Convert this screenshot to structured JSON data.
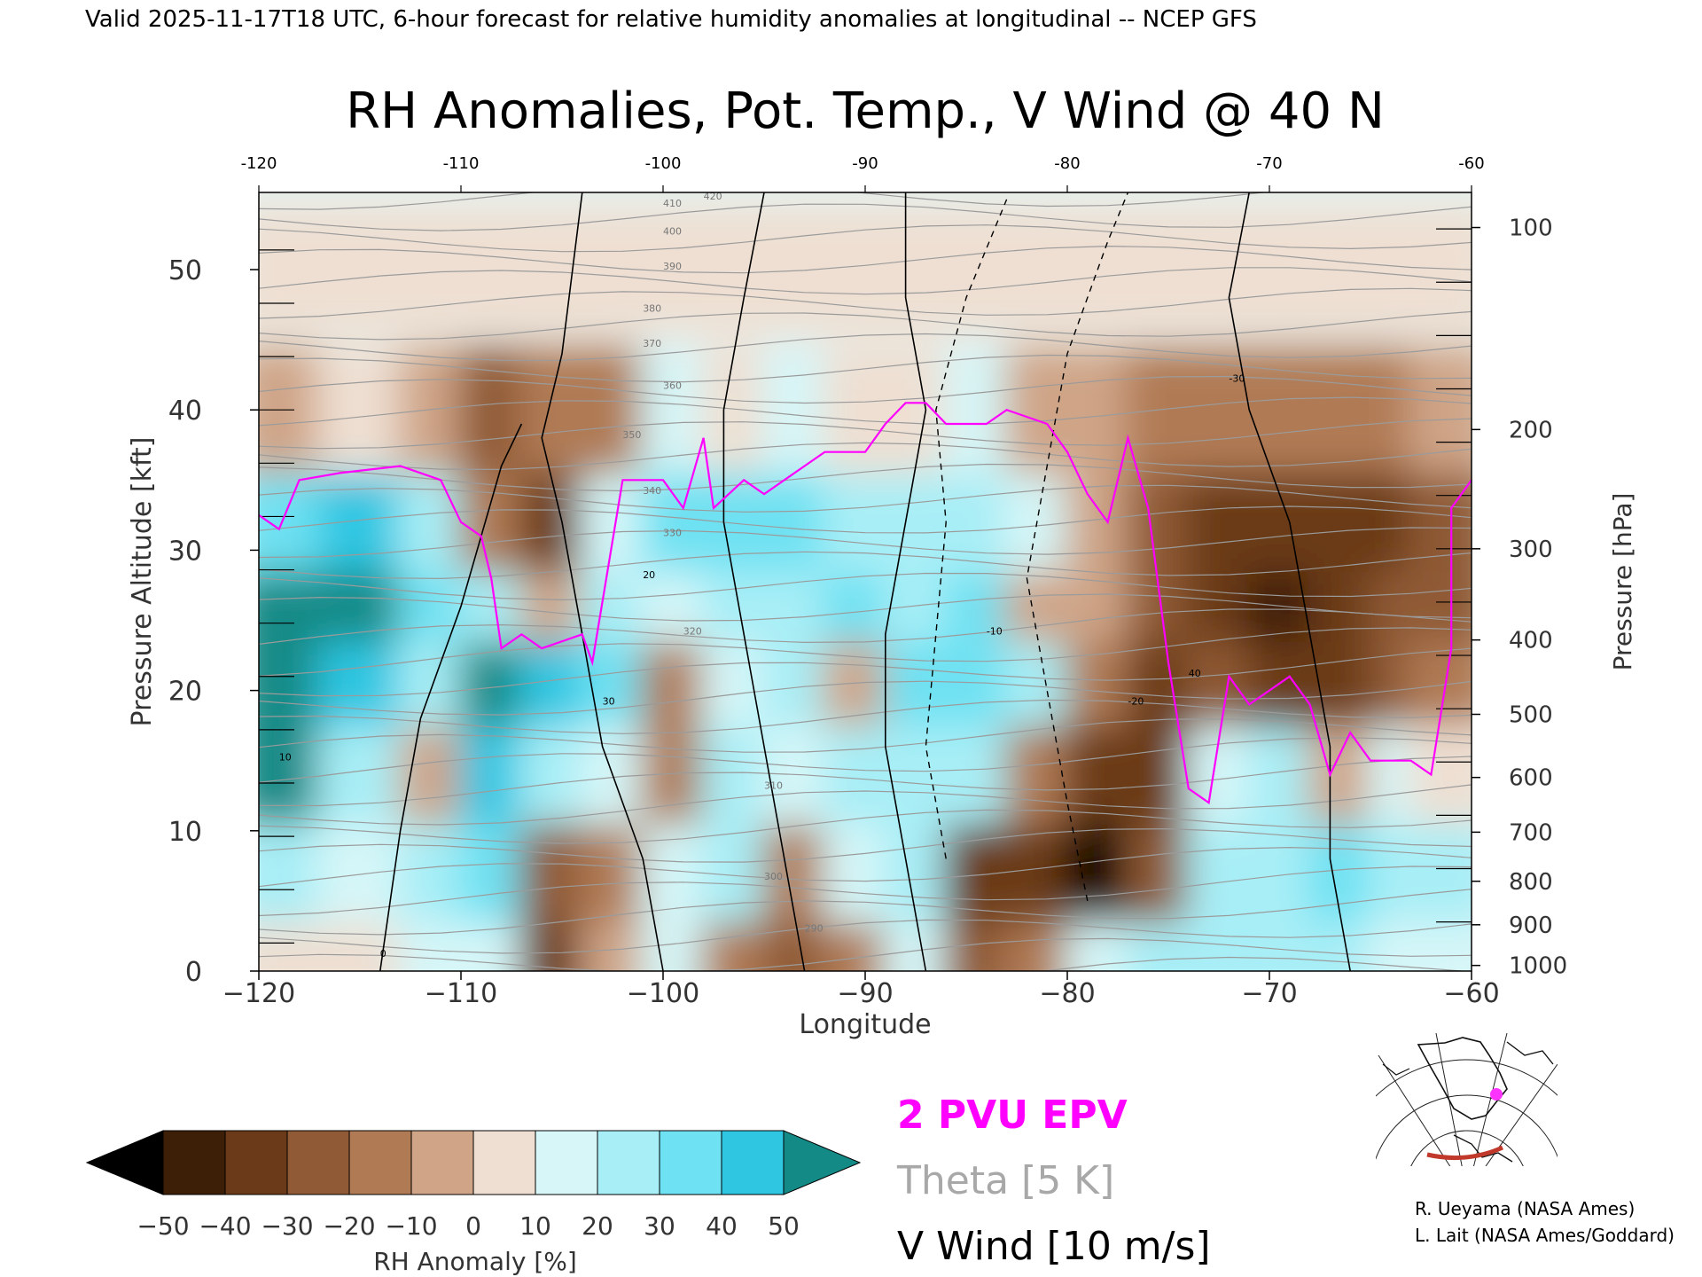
{
  "chart_data": {
    "type": "heatmap",
    "header": "Valid 2025-11-17T18 UTC, 6-hour forecast for relative humidity anomalies at longitudinal -- NCEP GFS",
    "title": "RH Anomalies, Pot. Temp., V Wind @ 40 N",
    "xlabel": "Longitude",
    "ylabel": "Pressure Altitude [kft]",
    "y2label": "Pressure [hPa]",
    "xlim": [
      -120,
      -60
    ],
    "ylim": [
      0,
      55.5
    ],
    "x_ticks": [
      -120,
      -110,
      -100,
      -90,
      -80,
      -70,
      -60
    ],
    "x_tick_labels": [
      "−120",
      "−110",
      "−100",
      "−90",
      "−80",
      "−70",
      "−60"
    ],
    "x_top_tick_labels": [
      "-120",
      "-110",
      "-100",
      "-90",
      "-80",
      "-70",
      "-60"
    ],
    "y_ticks": [
      0,
      10,
      20,
      30,
      40,
      50
    ],
    "y_tick_labels": [
      "0",
      "10",
      "20",
      "30",
      "40",
      "50"
    ],
    "pressure_ticks": [
      {
        "label": "100",
        "kft": 53.0
      },
      {
        "label": "200",
        "kft": 38.6
      },
      {
        "label": "300",
        "kft": 30.1
      },
      {
        "label": "400",
        "kft": 23.6
      },
      {
        "label": "500",
        "kft": 18.3
      },
      {
        "label": "600",
        "kft": 13.8
      },
      {
        "label": "700",
        "kft": 9.9
      },
      {
        "label": "800",
        "kft": 6.4
      },
      {
        "label": "900",
        "kft": 3.3
      },
      {
        "label": "1000",
        "kft": 0.4
      }
    ],
    "colorbar": {
      "label": "RH Anomaly [%]",
      "tick_labels": [
        "−50",
        "−40",
        "−30",
        "−20",
        "−10",
        "0",
        "10",
        "20",
        "30",
        "40",
        "50"
      ],
      "levels": [
        -50,
        -40,
        -30,
        -20,
        -10,
        0,
        10,
        20,
        30,
        40,
        50
      ],
      "bin_colors": [
        "#3d1f08",
        "#6b3a18",
        "#8f5a35",
        "#b07a55",
        "#cfa487",
        "#eedfd2",
        "#d6f6f8",
        "#a8eef6",
        "#6ee1f2",
        "#2fc6e2",
        "#0a8fae"
      ],
      "under_color": "#000000",
      "over_color": "#148a86"
    },
    "legend": [
      {
        "text": "2 PVU EPV",
        "color": "#ff00ff"
      },
      {
        "text": "Theta [5 K]",
        "color": "#a8a8a8"
      },
      {
        "text": "V Wind [10 m/s]",
        "color": "#000000"
      }
    ],
    "rh_anomaly_field": [
      {
        "x": -119,
        "y": 2,
        "v": 5
      },
      {
        "x": -119,
        "y": 8,
        "v": 25
      },
      {
        "x": -119,
        "y": 15,
        "v": 55
      },
      {
        "x": -119,
        "y": 22,
        "v": 55
      },
      {
        "x": -119,
        "y": 28,
        "v": 55
      },
      {
        "x": -119,
        "y": 33,
        "v": 35
      },
      {
        "x": -119,
        "y": 40,
        "v": -5
      },
      {
        "x": -119,
        "y": 50,
        "v": 0
      },
      {
        "x": -115,
        "y": 2,
        "v": 5
      },
      {
        "x": -115,
        "y": 8,
        "v": 10
      },
      {
        "x": -115,
        "y": 15,
        "v": 20
      },
      {
        "x": -115,
        "y": 22,
        "v": 40
      },
      {
        "x": -115,
        "y": 28,
        "v": 55
      },
      {
        "x": -115,
        "y": 33,
        "v": 40
      },
      {
        "x": -115,
        "y": 40,
        "v": 0
      },
      {
        "x": -115,
        "y": 50,
        "v": 0
      },
      {
        "x": -111,
        "y": 2,
        "v": 10
      },
      {
        "x": -111,
        "y": 8,
        "v": 20
      },
      {
        "x": -111,
        "y": 15,
        "v": -5
      },
      {
        "x": -111,
        "y": 22,
        "v": 25
      },
      {
        "x": -111,
        "y": 28,
        "v": 30
      },
      {
        "x": -111,
        "y": 33,
        "v": 20
      },
      {
        "x": -111,
        "y": 40,
        "v": -10
      },
      {
        "x": -111,
        "y": 50,
        "v": 0
      },
      {
        "x": -108,
        "y": 2,
        "v": 15
      },
      {
        "x": -108,
        "y": 8,
        "v": 30
      },
      {
        "x": -108,
        "y": 15,
        "v": 45
      },
      {
        "x": -108,
        "y": 22,
        "v": 50
      },
      {
        "x": -108,
        "y": 28,
        "v": 20
      },
      {
        "x": -108,
        "y": 33,
        "v": -15
      },
      {
        "x": -108,
        "y": 40,
        "v": -25
      },
      {
        "x": -108,
        "y": 50,
        "v": 0
      },
      {
        "x": -105,
        "y": 2,
        "v": -35
      },
      {
        "x": -105,
        "y": 8,
        "v": -25
      },
      {
        "x": -105,
        "y": 15,
        "v": 25
      },
      {
        "x": -105,
        "y": 22,
        "v": 40
      },
      {
        "x": -105,
        "y": 28,
        "v": -10
      },
      {
        "x": -105,
        "y": 33,
        "v": -40
      },
      {
        "x": -105,
        "y": 40,
        "v": -20
      },
      {
        "x": -105,
        "y": 50,
        "v": 5
      },
      {
        "x": -102,
        "y": 2,
        "v": -10
      },
      {
        "x": -102,
        "y": 8,
        "v": -20
      },
      {
        "x": -102,
        "y": 15,
        "v": 15
      },
      {
        "x": -102,
        "y": 22,
        "v": 30
      },
      {
        "x": -102,
        "y": 28,
        "v": 25
      },
      {
        "x": -102,
        "y": 33,
        "v": 15
      },
      {
        "x": -102,
        "y": 40,
        "v": -15
      },
      {
        "x": -102,
        "y": 50,
        "v": 5
      },
      {
        "x": -99,
        "y": 2,
        "v": 10
      },
      {
        "x": -99,
        "y": 8,
        "v": 15
      },
      {
        "x": -99,
        "y": 15,
        "v": -15
      },
      {
        "x": -99,
        "y": 22,
        "v": -20
      },
      {
        "x": -99,
        "y": 28,
        "v": 15
      },
      {
        "x": -99,
        "y": 33,
        "v": 30
      },
      {
        "x": -99,
        "y": 40,
        "v": 10
      },
      {
        "x": -99,
        "y": 50,
        "v": 5
      },
      {
        "x": -96,
        "y": 2,
        "v": -15
      },
      {
        "x": -96,
        "y": 8,
        "v": 20
      },
      {
        "x": -96,
        "y": 15,
        "v": 20
      },
      {
        "x": -96,
        "y": 22,
        "v": 15
      },
      {
        "x": -96,
        "y": 28,
        "v": 25
      },
      {
        "x": -96,
        "y": 33,
        "v": 35
      },
      {
        "x": -96,
        "y": 40,
        "v": 5
      },
      {
        "x": -96,
        "y": 50,
        "v": 5
      },
      {
        "x": -93,
        "y": 2,
        "v": -25
      },
      {
        "x": -93,
        "y": 8,
        "v": -15
      },
      {
        "x": -93,
        "y": 15,
        "v": 15
      },
      {
        "x": -93,
        "y": 22,
        "v": 20
      },
      {
        "x": -93,
        "y": 28,
        "v": 25
      },
      {
        "x": -93,
        "y": 33,
        "v": 30
      },
      {
        "x": -93,
        "y": 40,
        "v": 10
      },
      {
        "x": -93,
        "y": 50,
        "v": 5
      },
      {
        "x": -90,
        "y": 2,
        "v": -20
      },
      {
        "x": -90,
        "y": 8,
        "v": 10
      },
      {
        "x": -90,
        "y": 15,
        "v": 25
      },
      {
        "x": -90,
        "y": 22,
        "v": -10
      },
      {
        "x": -90,
        "y": 28,
        "v": 30
      },
      {
        "x": -90,
        "y": 33,
        "v": 25
      },
      {
        "x": -90,
        "y": 40,
        "v": 5
      },
      {
        "x": -90,
        "y": 50,
        "v": 5
      },
      {
        "x": -87,
        "y": 2,
        "v": 15
      },
      {
        "x": -87,
        "y": 8,
        "v": 20
      },
      {
        "x": -87,
        "y": 15,
        "v": 25
      },
      {
        "x": -87,
        "y": 22,
        "v": 30
      },
      {
        "x": -87,
        "y": 28,
        "v": 25
      },
      {
        "x": -87,
        "y": 33,
        "v": 20
      },
      {
        "x": -87,
        "y": 40,
        "v": 5
      },
      {
        "x": -87,
        "y": 50,
        "v": 5
      },
      {
        "x": -84,
        "y": 2,
        "v": -25
      },
      {
        "x": -84,
        "y": 8,
        "v": -40
      },
      {
        "x": -84,
        "y": 15,
        "v": 20
      },
      {
        "x": -84,
        "y": 22,
        "v": 30
      },
      {
        "x": -84,
        "y": 28,
        "v": 30
      },
      {
        "x": -84,
        "y": 33,
        "v": 25
      },
      {
        "x": -84,
        "y": 40,
        "v": 10
      },
      {
        "x": -84,
        "y": 50,
        "v": 5
      },
      {
        "x": -81,
        "y": 2,
        "v": -20
      },
      {
        "x": -81,
        "y": 8,
        "v": -40
      },
      {
        "x": -81,
        "y": 15,
        "v": -20
      },
      {
        "x": -81,
        "y": 22,
        "v": 20
      },
      {
        "x": -81,
        "y": 28,
        "v": -10
      },
      {
        "x": -81,
        "y": 33,
        "v": 15
      },
      {
        "x": -81,
        "y": 40,
        "v": -5
      },
      {
        "x": -81,
        "y": 50,
        "v": 5
      },
      {
        "x": -78,
        "y": 2,
        "v": 10
      },
      {
        "x": -78,
        "y": 8,
        "v": -45
      },
      {
        "x": -78,
        "y": 10,
        "v": -55
      },
      {
        "x": -78,
        "y": 15,
        "v": -40
      },
      {
        "x": -78,
        "y": 22,
        "v": -15
      },
      {
        "x": -78,
        "y": 28,
        "v": -10
      },
      {
        "x": -78,
        "y": 33,
        "v": -10
      },
      {
        "x": -78,
        "y": 40,
        "v": -10
      },
      {
        "x": -78,
        "y": 50,
        "v": 5
      },
      {
        "x": -75,
        "y": 2,
        "v": 20
      },
      {
        "x": -75,
        "y": 8,
        "v": -30
      },
      {
        "x": -75,
        "y": 15,
        "v": -35
      },
      {
        "x": -75,
        "y": 22,
        "v": -40
      },
      {
        "x": -75,
        "y": 28,
        "v": -30
      },
      {
        "x": -75,
        "y": 33,
        "v": -25
      },
      {
        "x": -75,
        "y": 40,
        "v": -15
      },
      {
        "x": -75,
        "y": 50,
        "v": 0
      },
      {
        "x": -72,
        "y": 2,
        "v": 20
      },
      {
        "x": -72,
        "y": 8,
        "v": 25
      },
      {
        "x": -72,
        "y": 15,
        "v": 15
      },
      {
        "x": -72,
        "y": 22,
        "v": -30
      },
      {
        "x": -72,
        "y": 28,
        "v": -40
      },
      {
        "x": -72,
        "y": 33,
        "v": -40
      },
      {
        "x": -72,
        "y": 40,
        "v": -20
      },
      {
        "x": -72,
        "y": 50,
        "v": 0
      },
      {
        "x": -69,
        "y": 2,
        "v": 20
      },
      {
        "x": -69,
        "y": 8,
        "v": 25
      },
      {
        "x": -69,
        "y": 15,
        "v": 20
      },
      {
        "x": -69,
        "y": 22,
        "v": -35
      },
      {
        "x": -69,
        "y": 28,
        "v": -45
      },
      {
        "x": -69,
        "y": 33,
        "v": -40
      },
      {
        "x": -69,
        "y": 40,
        "v": -20
      },
      {
        "x": -69,
        "y": 50,
        "v": 0
      },
      {
        "x": -66,
        "y": 2,
        "v": 20
      },
      {
        "x": -66,
        "y": 8,
        "v": 30
      },
      {
        "x": -66,
        "y": 15,
        "v": -10
      },
      {
        "x": -66,
        "y": 22,
        "v": -35
      },
      {
        "x": -66,
        "y": 28,
        "v": -40
      },
      {
        "x": -66,
        "y": 33,
        "v": -40
      },
      {
        "x": -66,
        "y": 40,
        "v": -15
      },
      {
        "x": -66,
        "y": 50,
        "v": 0
      },
      {
        "x": -63,
        "y": 2,
        "v": 15
      },
      {
        "x": -63,
        "y": 8,
        "v": 25
      },
      {
        "x": -63,
        "y": 15,
        "v": 10
      },
      {
        "x": -63,
        "y": 22,
        "v": -30
      },
      {
        "x": -63,
        "y": 28,
        "v": -30
      },
      {
        "x": -63,
        "y": 33,
        "v": -35
      },
      {
        "x": -63,
        "y": 40,
        "v": -15
      },
      {
        "x": -63,
        "y": 50,
        "v": 0
      },
      {
        "x": -61,
        "y": 2,
        "v": 10
      },
      {
        "x": -61,
        "y": 8,
        "v": 20
      },
      {
        "x": -61,
        "y": 15,
        "v": 5
      },
      {
        "x": -61,
        "y": 22,
        "v": -20
      },
      {
        "x": -61,
        "y": 28,
        "v": -25
      },
      {
        "x": -61,
        "y": 33,
        "v": -30
      },
      {
        "x": -61,
        "y": 40,
        "v": -10
      },
      {
        "x": -61,
        "y": 50,
        "v": 0
      }
    ],
    "epv_2pvu_line": [
      [
        -120,
        32.5
      ],
      [
        -119,
        31.5
      ],
      [
        -118,
        35
      ],
      [
        -116,
        35.5
      ],
      [
        -113,
        36
      ],
      [
        -111,
        35
      ],
      [
        -110,
        32
      ],
      [
        -109,
        31
      ],
      [
        -108.5,
        28
      ],
      [
        -108,
        23
      ],
      [
        -107,
        24
      ],
      [
        -106,
        23
      ],
      [
        -104,
        24
      ],
      [
        -103.5,
        22
      ],
      [
        -102,
        35
      ],
      [
        -100,
        35
      ],
      [
        -99,
        33
      ],
      [
        -98,
        38
      ],
      [
        -97.5,
        33
      ],
      [
        -96,
        35
      ],
      [
        -95,
        34
      ],
      [
        -93,
        36
      ],
      [
        -92,
        37
      ],
      [
        -90,
        37
      ],
      [
        -89,
        39
      ],
      [
        -88,
        40.5
      ],
      [
        -87,
        40.5
      ],
      [
        -86,
        39
      ],
      [
        -84,
        39
      ],
      [
        -83,
        40
      ],
      [
        -81,
        39
      ],
      [
        -80,
        37
      ],
      [
        -79,
        34
      ],
      [
        -78,
        32
      ],
      [
        -77,
        38
      ],
      [
        -76,
        33
      ],
      [
        -75,
        22
      ],
      [
        -74,
        13
      ],
      [
        -73,
        12
      ],
      [
        -72,
        21
      ],
      [
        -71,
        19
      ],
      [
        -69,
        21
      ],
      [
        -68,
        19
      ],
      [
        -67,
        14
      ],
      [
        -66,
        17
      ],
      [
        -65,
        15
      ],
      [
        -63,
        15
      ],
      [
        -62,
        14
      ],
      [
        -61,
        23
      ],
      [
        -61,
        33
      ],
      [
        -60,
        35
      ]
    ],
    "v_wind_zero_lines": [
      [
        [
          -114,
          0
        ],
        [
          -113,
          10
        ],
        [
          -112,
          18
        ],
        [
          -110,
          26
        ],
        [
          -108,
          36
        ],
        [
          -107,
          39
        ]
      ],
      [
        [
          -100,
          0
        ],
        [
          -101,
          8
        ],
        [
          -103,
          16
        ],
        [
          -104,
          24
        ],
        [
          -105,
          32
        ],
        [
          -106,
          38
        ],
        [
          -105,
          44
        ],
        [
          -104,
          55.5
        ]
      ],
      [
        [
          -93,
          0
        ],
        [
          -94,
          8
        ],
        [
          -95,
          16
        ],
        [
          -96,
          24
        ],
        [
          -97,
          32
        ],
        [
          -97,
          40
        ],
        [
          -96,
          48
        ],
        [
          -95,
          55.5
        ]
      ],
      [
        [
          -87,
          0
        ],
        [
          -88,
          8
        ],
        [
          -89,
          16
        ],
        [
          -89,
          24
        ],
        [
          -88,
          32
        ],
        [
          -87,
          40
        ],
        [
          -88,
          48
        ],
        [
          -88,
          55.5
        ]
      ],
      [
        [
          -66,
          0
        ],
        [
          -67,
          8
        ],
        [
          -67,
          16
        ],
        [
          -68,
          24
        ],
        [
          -69,
          32
        ],
        [
          -71,
          40
        ],
        [
          -72,
          48
        ],
        [
          -71,
          55.5
        ]
      ]
    ],
    "v_wind_negative_dashed_lines": [
      [
        [
          -86,
          8
        ],
        [
          -87,
          16
        ],
        [
          -86.5,
          24
        ],
        [
          -86,
          32
        ],
        [
          -86.5,
          40
        ],
        [
          -85,
          48
        ],
        [
          -83,
          55
        ]
      ],
      [
        [
          -79,
          5
        ],
        [
          -80,
          12
        ],
        [
          -81,
          20
        ],
        [
          -82,
          28
        ],
        [
          -81,
          36
        ],
        [
          -80,
          44
        ],
        [
          -78,
          52
        ],
        [
          -77,
          55.5
        ]
      ]
    ],
    "theta_levels_K": [
      290,
      300,
      310,
      320,
      330,
      340,
      350,
      360,
      370,
      380,
      390,
      400,
      410,
      420
    ],
    "theta_label_texts": [
      "290",
      "300",
      "310",
      "320",
      "330",
      "340",
      "350",
      "360",
      "370",
      "380",
      "390",
      "400",
      "410",
      "420"
    ],
    "wind_contour_label_texts": [
      "0",
      "10",
      "-10",
      "20",
      "30",
      "-20",
      "40",
      "-30"
    ]
  },
  "credits": {
    "line1": "R. Ueyama (NASA Ames)",
    "line2": "L. Lait (NASA Ames/Goddard)"
  },
  "inset_map": {
    "point_color": "#ff33ff",
    "section_color": "#c0392b"
  }
}
